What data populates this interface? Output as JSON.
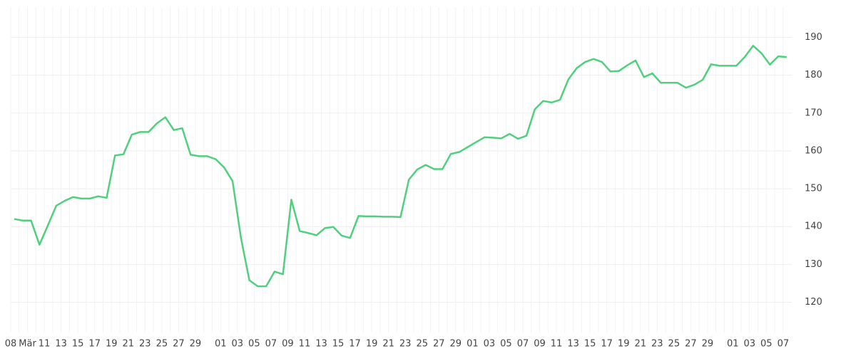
{
  "chart_data": {
    "type": "line",
    "categories": [
      "08",
      null,
      "Mär",
      null,
      "11",
      null,
      "13",
      null,
      "15",
      null,
      "17",
      null,
      "19",
      null,
      "21",
      null,
      "23",
      null,
      "25",
      null,
      "27",
      null,
      "29",
      null,
      null,
      "01",
      null,
      "03",
      null,
      "05",
      null,
      "07",
      null,
      "09",
      null,
      "11",
      null,
      "13",
      null,
      "15",
      null,
      "17",
      null,
      "19",
      null,
      "21",
      null,
      "23",
      null,
      "25",
      null,
      "27",
      null,
      "29",
      null,
      "01",
      null,
      "03",
      null,
      "05",
      null,
      "07",
      null,
      "09",
      null,
      "11",
      null,
      "13",
      null,
      "15",
      null,
      "17",
      null,
      "19",
      null,
      "21",
      null,
      "23",
      null,
      "25",
      null,
      "27",
      null,
      "29",
      null,
      null,
      "01",
      null,
      "03",
      null,
      "05",
      null,
      "07"
    ],
    "values": [
      142.0,
      141.6,
      141.6,
      135.2,
      140.3,
      145.5,
      146.8,
      147.8,
      147.4,
      147.4,
      148.0,
      147.6,
      158.8,
      159.1,
      164.3,
      165.0,
      165.0,
      167.3,
      168.9,
      165.5,
      166.0,
      159.0,
      158.6,
      158.6,
      157.8,
      155.6,
      152.0,
      137.0,
      125.8,
      124.2,
      124.2,
      128.1,
      127.4,
      147.1,
      138.8,
      138.3,
      137.7,
      139.6,
      139.9,
      137.6,
      137.0,
      142.8,
      142.7,
      142.7,
      142.6,
      142.6,
      142.5,
      152.4,
      155.1,
      156.3,
      155.2,
      155.2,
      159.2,
      159.7,
      161.0,
      162.3,
      163.6,
      163.5,
      163.3,
      164.5,
      163.2,
      164.0,
      171.0,
      173.2,
      172.8,
      173.5,
      178.9,
      181.9,
      183.5,
      184.3,
      183.5,
      181.0,
      181.1,
      182.6,
      183.9,
      179.5,
      180.5,
      178.0,
      178.0,
      178.0,
      176.7,
      177.5,
      178.8,
      182.9,
      182.5,
      182.5,
      182.5,
      184.8,
      187.8,
      185.8,
      182.8,
      185.0,
      184.8
    ],
    "color": "#50d07f",
    "ylim": [
      112,
      198
    ],
    "yticks": [
      120,
      130,
      140,
      150,
      160,
      170,
      180,
      190
    ],
    "grid": true
  }
}
